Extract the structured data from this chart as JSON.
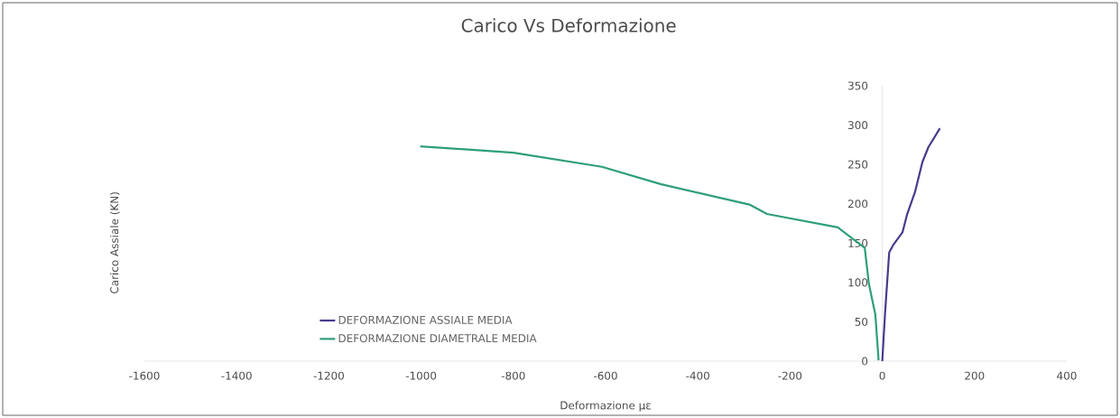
{
  "chart_data": {
    "type": "line",
    "title": "Carico Vs Deformazione",
    "xlabel": "Deformazione µε",
    "ylabel": "Carico Assiale  (KN)",
    "xlim": [
      -1600,
      400
    ],
    "xticks": [
      -1600,
      -1400,
      -1200,
      -1000,
      -800,
      -600,
      -400,
      -200,
      0,
      200,
      400
    ],
    "ylim": [
      0,
      350
    ],
    "yticks": [
      0,
      50,
      100,
      150,
      200,
      250,
      300,
      350
    ],
    "legend": "bottom",
    "grid": false,
    "marker": "none",
    "line_style": "solid",
    "series": [
      {
        "name": "DEFORMAZIONE ASSIALE MEDIA",
        "color": "#4b3a8c",
        "x": [
          0,
          6,
          15,
          23,
          44,
          54,
          71,
          87,
          100,
          125
        ],
        "values": [
          0,
          61,
          138,
          147,
          164,
          187,
          215,
          253,
          272,
          296
        ]
      },
      {
        "name": "DEFORMAZIONE DIAMETRALE MEDIA",
        "color": "#2e9e7a",
        "x": [
          -1002,
          -800,
          -608,
          -481,
          -288,
          -250,
          -96,
          -90,
          -38,
          -29,
          -15,
          -8
        ],
        "values": [
          273,
          265,
          247,
          225,
          199,
          187,
          170,
          167,
          144,
          98,
          59,
          1
        ]
      }
    ]
  }
}
